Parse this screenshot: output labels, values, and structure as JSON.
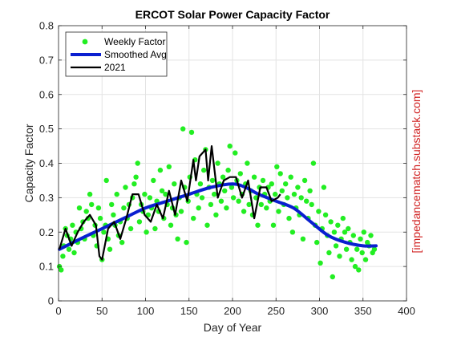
{
  "watermark": "[impedancematch.substack.com]",
  "colors": {
    "weekly": "#22ee22",
    "smoothed": "#0a1fd0",
    "year2021": "#000000",
    "watermark": "#d02020",
    "grid": "#e3e3e3",
    "axis": "#262626"
  },
  "chart_data": {
    "type": "line",
    "title": "ERCOT Solar Power Capacity Factor",
    "xlabel": "Day of Year",
    "ylabel": "Capacity Factor",
    "xlim": [
      0,
      400
    ],
    "ylim": [
      0,
      0.8
    ],
    "xticks": [
      "0",
      "50",
      "100",
      "150",
      "200",
      "250",
      "300",
      "350",
      "400"
    ],
    "yticks": [
      "0",
      "0.1",
      "0.2",
      "0.3",
      "0.4",
      "0.5",
      "0.6",
      "0.7",
      "0.8"
    ],
    "grid": true,
    "legend_position": "top-left",
    "series": [
      {
        "name": "Weekly Factor",
        "style": "markers",
        "points": [
          [
            1,
            0.1
          ],
          [
            3,
            0.09
          ],
          [
            5,
            0.13
          ],
          [
            6,
            0.16
          ],
          [
            8,
            0.21
          ],
          [
            10,
            0.19
          ],
          [
            12,
            0.15
          ],
          [
            14,
            0.18
          ],
          [
            16,
            0.22
          ],
          [
            18,
            0.14
          ],
          [
            20,
            0.2
          ],
          [
            22,
            0.17
          ],
          [
            24,
            0.27
          ],
          [
            26,
            0.21
          ],
          [
            28,
            0.23
          ],
          [
            30,
            0.18
          ],
          [
            32,
            0.26
          ],
          [
            34,
            0.24
          ],
          [
            36,
            0.31
          ],
          [
            38,
            0.28
          ],
          [
            40,
            0.19
          ],
          [
            42,
            0.22
          ],
          [
            44,
            0.16
          ],
          [
            46,
            0.27
          ],
          [
            48,
            0.24
          ],
          [
            50,
            0.12
          ],
          [
            52,
            0.2
          ],
          [
            54,
            0.22
          ],
          [
            55,
            0.35
          ],
          [
            57,
            0.18
          ],
          [
            59,
            0.15
          ],
          [
            61,
            0.28
          ],
          [
            63,
            0.25
          ],
          [
            65,
            0.22
          ],
          [
            67,
            0.31
          ],
          [
            69,
            0.19
          ],
          [
            71,
            0.23
          ],
          [
            73,
            0.17
          ],
          [
            75,
            0.27
          ],
          [
            77,
            0.33
          ],
          [
            79,
            0.24
          ],
          [
            81,
            0.28
          ],
          [
            83,
            0.21
          ],
          [
            85,
            0.3
          ],
          [
            87,
            0.34
          ],
          [
            89,
            0.36
          ],
          [
            91,
            0.4
          ],
          [
            93,
            0.23
          ],
          [
            95,
            0.28
          ],
          [
            97,
            0.26
          ],
          [
            99,
            0.31
          ],
          [
            101,
            0.2
          ],
          [
            103,
            0.25
          ],
          [
            105,
            0.3
          ],
          [
            107,
            0.27
          ],
          [
            109,
            0.35
          ],
          [
            111,
            0.21
          ],
          [
            113,
            0.29
          ],
          [
            115,
            0.26
          ],
          [
            117,
            0.38
          ],
          [
            119,
            0.32
          ],
          [
            121,
            0.24
          ],
          [
            123,
            0.31
          ],
          [
            125,
            0.28
          ],
          [
            127,
            0.39
          ],
          [
            129,
            0.22
          ],
          [
            131,
            0.27
          ],
          [
            133,
            0.34
          ],
          [
            135,
            0.25
          ],
          [
            137,
            0.18
          ],
          [
            139,
            0.3
          ],
          [
            141,
            0.26
          ],
          [
            143,
            0.5
          ],
          [
            145,
            0.33
          ],
          [
            147,
            0.17
          ],
          [
            149,
            0.29
          ],
          [
            151,
            0.36
          ],
          [
            153,
            0.49
          ],
          [
            155,
            0.24
          ],
          [
            157,
            0.41
          ],
          [
            159,
            0.31
          ],
          [
            161,
            0.27
          ],
          [
            163,
            0.34
          ],
          [
            165,
            0.3
          ],
          [
            167,
            0.38
          ],
          [
            169,
            0.44
          ],
          [
            171,
            0.22
          ],
          [
            173,
            0.33
          ],
          [
            175,
            0.28
          ],
          [
            177,
            0.35
          ],
          [
            179,
            0.31
          ],
          [
            181,
            0.25
          ],
          [
            183,
            0.4
          ],
          [
            185,
            0.34
          ],
          [
            187,
            0.29
          ],
          [
            189,
            0.36
          ],
          [
            191,
            0.32
          ],
          [
            193,
            0.27
          ],
          [
            195,
            0.38
          ],
          [
            197,
            0.45
          ],
          [
            199,
            0.33
          ],
          [
            201,
            0.3
          ],
          [
            203,
            0.43
          ],
          [
            205,
            0.35
          ],
          [
            207,
            0.29
          ],
          [
            209,
            0.37
          ],
          [
            211,
            0.31
          ],
          [
            213,
            0.26
          ],
          [
            215,
            0.34
          ],
          [
            217,
            0.4
          ],
          [
            219,
            0.28
          ],
          [
            221,
            0.32
          ],
          [
            223,
            0.25
          ],
          [
            225,
            0.36
          ],
          [
            227,
            0.3
          ],
          [
            229,
            0.22
          ],
          [
            231,
            0.33
          ],
          [
            233,
            0.28
          ],
          [
            235,
            0.35
          ],
          [
            237,
            0.31
          ],
          [
            239,
            0.27
          ],
          [
            241,
            0.33
          ],
          [
            243,
            0.29
          ],
          [
            245,
            0.34
          ],
          [
            247,
            0.22
          ],
          [
            249,
            0.31
          ],
          [
            251,
            0.39
          ],
          [
            253,
            0.26
          ],
          [
            255,
            0.37
          ],
          [
            257,
            0.32
          ],
          [
            259,
            0.28
          ],
          [
            261,
            0.34
          ],
          [
            263,
            0.3
          ],
          [
            265,
            0.24
          ],
          [
            267,
            0.36
          ],
          [
            269,
            0.2
          ],
          [
            271,
            0.31
          ],
          [
            273,
            0.27
          ],
          [
            275,
            0.33
          ],
          [
            277,
            0.25
          ],
          [
            279,
            0.3
          ],
          [
            281,
            0.18
          ],
          [
            283,
            0.35
          ],
          [
            285,
            0.29
          ],
          [
            287,
            0.24
          ],
          [
            289,
            0.32
          ],
          [
            291,
            0.28
          ],
          [
            293,
            0.4
          ],
          [
            295,
            0.22
          ],
          [
            297,
            0.17
          ],
          [
            299,
            0.26
          ],
          [
            301,
            0.11
          ],
          [
            303,
            0.21
          ],
          [
            305,
            0.33
          ],
          [
            307,
            0.25
          ],
          [
            309,
            0.19
          ],
          [
            311,
            0.14
          ],
          [
            313,
            0.23
          ],
          [
            315,
            0.07
          ],
          [
            317,
            0.2
          ],
          [
            319,
            0.16
          ],
          [
            321,
            0.22
          ],
          [
            323,
            0.13
          ],
          [
            325,
            0.18
          ],
          [
            327,
            0.24
          ],
          [
            329,
            0.2
          ],
          [
            331,
            0.15
          ],
          [
            333,
            0.21
          ],
          [
            335,
            0.17
          ],
          [
            337,
            0.12
          ],
          [
            339,
            0.19
          ],
          [
            341,
            0.1
          ],
          [
            343,
            0.15
          ],
          [
            345,
            0.09
          ],
          [
            347,
            0.18
          ],
          [
            349,
            0.14
          ],
          [
            351,
            0.2
          ],
          [
            353,
            0.12
          ],
          [
            355,
            0.17
          ],
          [
            357,
            0.16
          ],
          [
            359,
            0.19
          ],
          [
            361,
            0.14
          ],
          [
            363,
            0.15
          ]
        ]
      },
      {
        "name": "Smoothed Avg",
        "style": "thick-line",
        "points": [
          [
            1,
            0.15
          ],
          [
            25,
            0.18
          ],
          [
            50,
            0.21
          ],
          [
            75,
            0.24
          ],
          [
            100,
            0.27
          ],
          [
            125,
            0.29
          ],
          [
            150,
            0.31
          ],
          [
            175,
            0.33
          ],
          [
            200,
            0.34
          ],
          [
            215,
            0.33
          ],
          [
            230,
            0.31
          ],
          [
            250,
            0.29
          ],
          [
            270,
            0.27
          ],
          [
            290,
            0.23
          ],
          [
            310,
            0.19
          ],
          [
            330,
            0.17
          ],
          [
            350,
            0.16
          ],
          [
            365,
            0.16
          ]
        ]
      },
      {
        "name": "2021",
        "style": "line",
        "points": [
          [
            1,
            0.15
          ],
          [
            8,
            0.21
          ],
          [
            15,
            0.16
          ],
          [
            22,
            0.2
          ],
          [
            29,
            0.23
          ],
          [
            36,
            0.25
          ],
          [
            43,
            0.22
          ],
          [
            47,
            0.13
          ],
          [
            50,
            0.12
          ],
          [
            57,
            0.21
          ],
          [
            64,
            0.23
          ],
          [
            71,
            0.18
          ],
          [
            78,
            0.24
          ],
          [
            85,
            0.31
          ],
          [
            92,
            0.31
          ],
          [
            99,
            0.25
          ],
          [
            106,
            0.23
          ],
          [
            113,
            0.28
          ],
          [
            120,
            0.24
          ],
          [
            127,
            0.32
          ],
          [
            134,
            0.25
          ],
          [
            141,
            0.35
          ],
          [
            148,
            0.29
          ],
          [
            155,
            0.41
          ],
          [
            158,
            0.35
          ],
          [
            162,
            0.42
          ],
          [
            169,
            0.44
          ],
          [
            172,
            0.35
          ],
          [
            176,
            0.45
          ],
          [
            183,
            0.3
          ],
          [
            190,
            0.35
          ],
          [
            197,
            0.36
          ],
          [
            204,
            0.36
          ],
          [
            211,
            0.3
          ],
          [
            218,
            0.35
          ],
          [
            225,
            0.24
          ],
          [
            232,
            0.33
          ],
          [
            239,
            0.33
          ],
          [
            245,
            0.29
          ],
          [
            252,
            0.3
          ],
          [
            255,
            0.31
          ]
        ]
      }
    ]
  }
}
